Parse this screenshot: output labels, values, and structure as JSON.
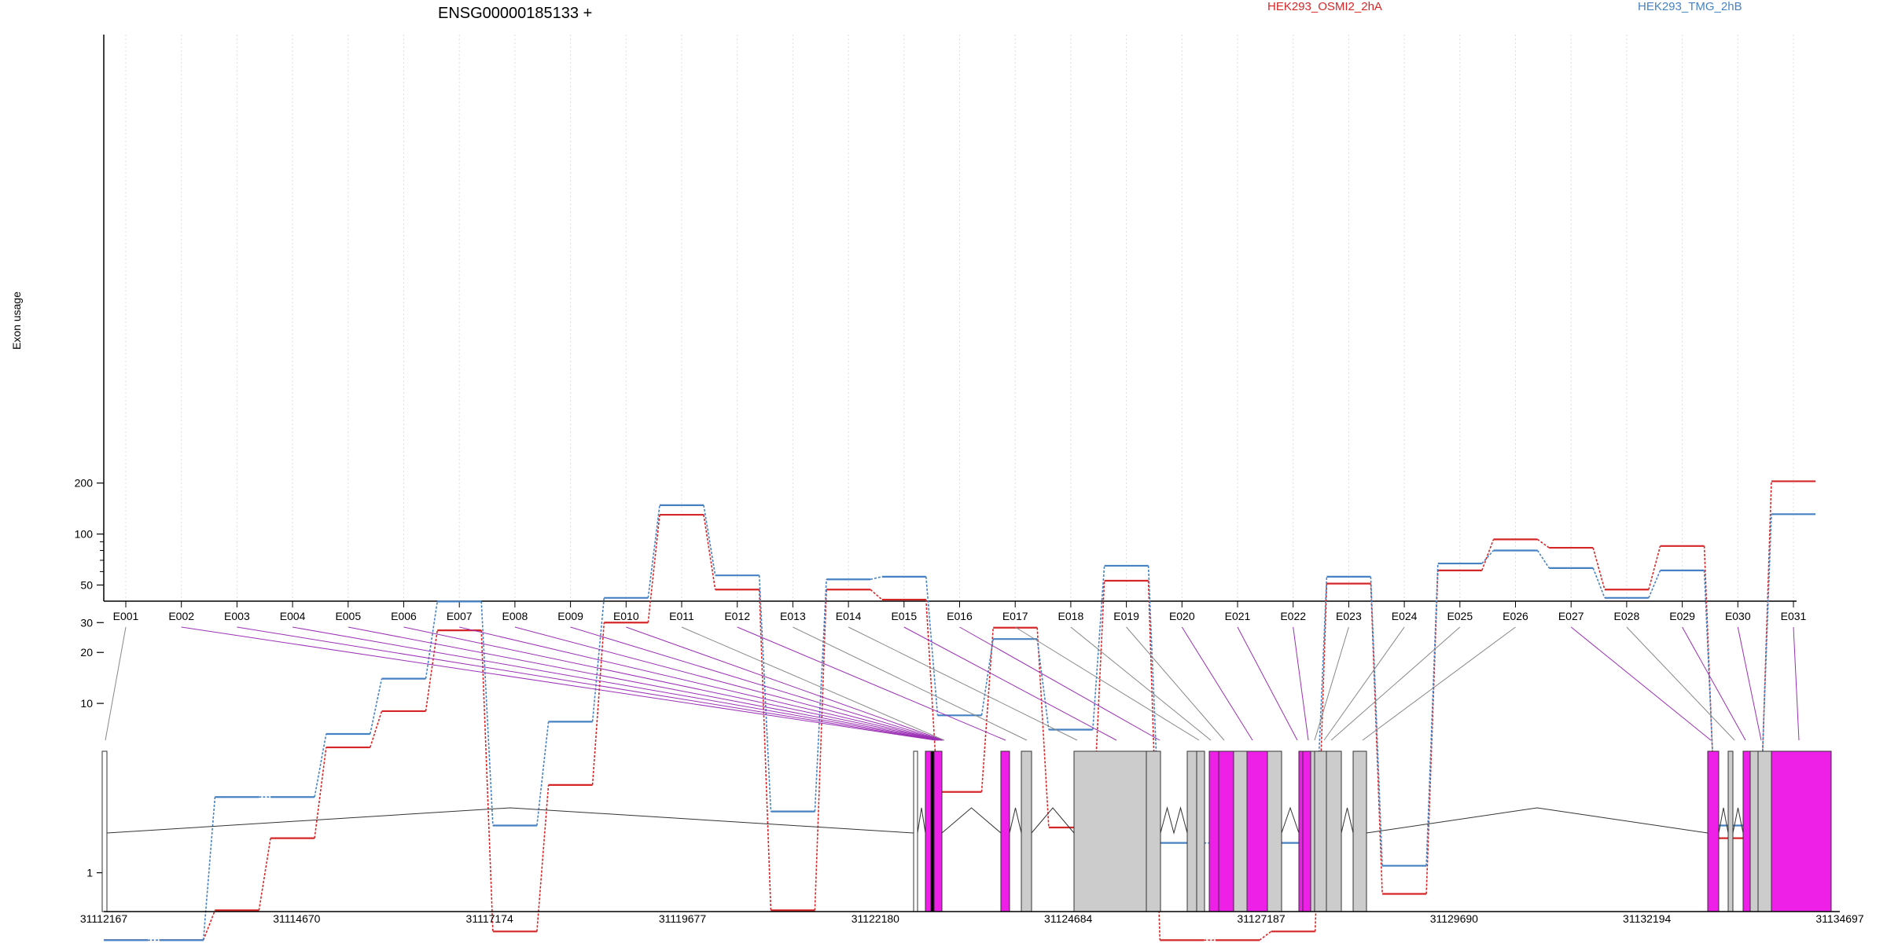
{
  "chart_data": {
    "type": "line",
    "title": "ENSG00000185133 +",
    "ylabel": "Exon usage",
    "xlabel": "",
    "y_scale": "log",
    "ylim": [
      0.4,
      230
    ],
    "y_ticks": [
      1,
      10,
      20,
      30,
      50,
      100,
      200
    ],
    "grid": "vertical dotted",
    "legend_placement": "top",
    "categories": [
      "E001",
      "E002",
      "E003",
      "E004",
      "E005",
      "E006",
      "E007",
      "E008",
      "E009",
      "E010",
      "E011",
      "E012",
      "E013",
      "E014",
      "E015",
      "E016",
      "E017",
      "E018",
      "E019",
      "E020",
      "E021",
      "E022",
      "E023",
      "E024",
      "E025",
      "E026",
      "E027",
      "E028",
      "E029",
      "E030",
      "E031"
    ],
    "series": [
      {
        "name": "HEK293_OSMI2_2hA",
        "color": "#d62728",
        "values": [
          0.4,
          0.4,
          0.6,
          1.6,
          5.5,
          9,
          27,
          0.45,
          3.3,
          30,
          130,
          47,
          0.6,
          47,
          41,
          3,
          28,
          1.85,
          53,
          0.4,
          0.4,
          0.45,
          51,
          0.75,
          61,
          93,
          83,
          47,
          85,
          1.6,
          205
        ]
      },
      {
        "name": "HEK293_TMG_2hB",
        "color": "#4682c3",
        "values": [
          0.4,
          0.4,
          2.8,
          2.8,
          6.6,
          14,
          40,
          1.9,
          7.8,
          42,
          148,
          57,
          2.3,
          54,
          56,
          8.5,
          24,
          7,
          65,
          1.5,
          1.5,
          1.5,
          56,
          1.1,
          67,
          80,
          63,
          42,
          61,
          1.9,
          131
        ]
      }
    ],
    "gene_model": {
      "positions": [
        "31112167",
        "31114670",
        "31117174",
        "31119677",
        "31122180",
        "31124684",
        "31127187",
        "31129690",
        "31132194",
        "31134697"
      ],
      "exon_highlight": [
        false,
        true,
        true,
        true,
        true,
        true,
        true,
        true,
        true,
        true,
        false,
        true,
        false,
        false,
        true,
        true,
        false,
        false,
        false,
        true,
        true,
        true,
        false,
        false,
        false,
        false,
        true,
        false,
        true,
        true,
        true
      ],
      "highlight_color": "#ee1fe7",
      "exon_color": "#cccccc",
      "connector_highlight_color": "#9b30b5",
      "connector_color": "#888888"
    }
  }
}
